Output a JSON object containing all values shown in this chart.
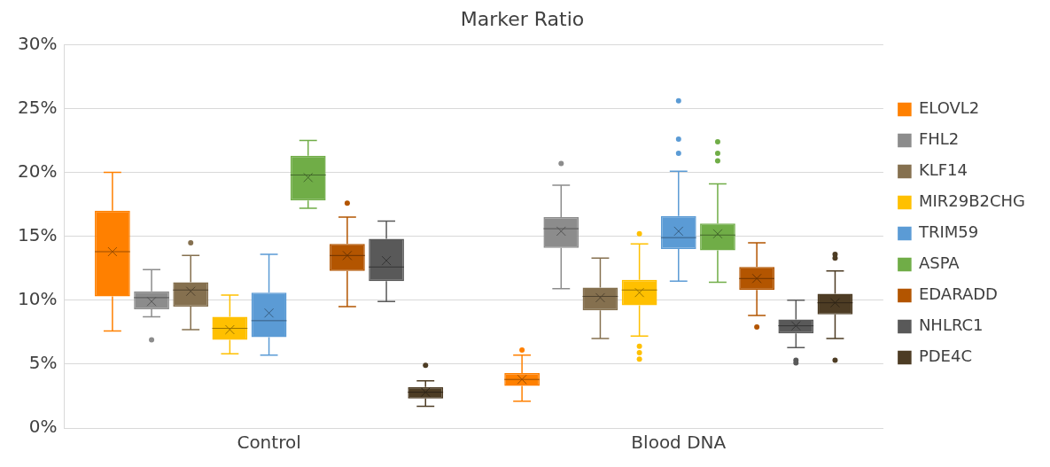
{
  "chart_data": {
    "type": "box",
    "title": "Marker Ratio",
    "categories": [
      "Control",
      "Blood DNA"
    ],
    "ylim": [
      0,
      30
    ],
    "yticks": [
      {
        "value": 0,
        "label": "0%"
      },
      {
        "value": 5,
        "label": "5%"
      },
      {
        "value": 10,
        "label": "10%"
      },
      {
        "value": 15,
        "label": "15%"
      },
      {
        "value": 20,
        "label": "20%"
      },
      {
        "value": 25,
        "label": "25%"
      },
      {
        "value": 30,
        "label": "30%"
      }
    ],
    "grid": "y",
    "legend": "right",
    "marker": "circle",
    "series": [
      {
        "name": "ELOVL2",
        "color": "#ff8000",
        "boxes": [
          {
            "low": 7.6,
            "q1": 10.3,
            "median": 13.8,
            "q3": 17.0,
            "high": 20.0,
            "mean": 13.8
          },
          {
            "low": 2.1,
            "q1": 3.3,
            "median": 3.8,
            "q3": 4.3,
            "high": 5.7,
            "mean": 3.8,
            "outliers": [
              6.1
            ]
          }
        ]
      },
      {
        "name": "FHL2",
        "color": "#8c8c8c",
        "boxes": [
          {
            "low": 8.7,
            "q1": 9.3,
            "median": 10.2,
            "q3": 10.7,
            "high": 12.4,
            "mean": 9.9,
            "outliers": [
              6.9
            ]
          },
          {
            "low": 10.9,
            "q1": 14.1,
            "median": 15.6,
            "q3": 16.5,
            "high": 19.0,
            "mean": 15.4,
            "outliers": [
              20.7
            ]
          }
        ]
      },
      {
        "name": "KLF14",
        "color": "#85704f",
        "boxes": [
          {
            "low": 7.7,
            "q1": 9.5,
            "median": 10.8,
            "q3": 11.4,
            "high": 13.5,
            "mean": 10.7,
            "outliers": [
              14.5
            ]
          },
          {
            "low": 7.0,
            "q1": 9.2,
            "median": 10.3,
            "q3": 11.0,
            "high": 13.3,
            "mean": 10.2
          }
        ]
      },
      {
        "name": "MIR29B2CHG",
        "color": "#ffc000",
        "boxes": [
          {
            "low": 5.8,
            "q1": 6.9,
            "median": 7.8,
            "q3": 8.7,
            "high": 10.4,
            "mean": 7.7
          },
          {
            "low": 7.2,
            "q1": 9.6,
            "median": 10.8,
            "q3": 11.6,
            "high": 14.4,
            "mean": 10.6,
            "outliers": [
              15.2,
              6.4,
              5.9,
              5.4
            ]
          }
        ]
      },
      {
        "name": "TRIM59",
        "color": "#5b9bd5",
        "boxes": [
          {
            "low": 5.7,
            "q1": 7.1,
            "median": 8.4,
            "q3": 10.6,
            "high": 13.6,
            "mean": 9.0
          },
          {
            "low": 11.5,
            "q1": 14.0,
            "median": 14.9,
            "q3": 16.6,
            "high": 20.1,
            "mean": 15.4,
            "outliers": [
              25.6,
              22.6,
              21.5
            ]
          }
        ]
      },
      {
        "name": "ASPA",
        "color": "#70ad47",
        "boxes": [
          {
            "low": 17.2,
            "q1": 17.8,
            "median": 19.8,
            "q3": 21.3,
            "high": 22.5,
            "mean": 19.6
          },
          {
            "low": 11.4,
            "q1": 13.9,
            "median": 15.1,
            "q3": 16.0,
            "high": 19.1,
            "mean": 15.2,
            "outliers": [
              22.4,
              21.5,
              20.9
            ]
          }
        ]
      },
      {
        "name": "EDARADD",
        "color": "#b35500",
        "boxes": [
          {
            "low": 9.5,
            "q1": 12.3,
            "median": 13.5,
            "q3": 14.4,
            "high": 16.5,
            "mean": 13.5,
            "outliers": [
              17.6
            ]
          },
          {
            "low": 8.8,
            "q1": 10.8,
            "median": 11.7,
            "q3": 12.6,
            "high": 14.5,
            "mean": 11.7,
            "outliers": [
              7.9
            ]
          }
        ]
      },
      {
        "name": "NHLRC1",
        "color": "#595959",
        "boxes": [
          {
            "low": 9.9,
            "q1": 11.5,
            "median": 12.6,
            "q3": 14.8,
            "high": 16.2,
            "mean": 13.1
          },
          {
            "low": 6.3,
            "q1": 7.4,
            "median": 8.0,
            "q3": 8.5,
            "high": 10.0,
            "mean": 8.0,
            "outliers": [
              5.3,
              5.1
            ]
          }
        ]
      },
      {
        "name": "PDE4C",
        "color": "#4d3c24",
        "boxes": [
          {
            "low": 1.7,
            "q1": 2.3,
            "median": 2.8,
            "q3": 3.2,
            "high": 3.7,
            "mean": 2.8,
            "outliers": [
              4.9
            ]
          },
          {
            "low": 7.0,
            "q1": 8.9,
            "median": 9.8,
            "q3": 10.5,
            "high": 12.3,
            "mean": 9.8,
            "outliers": [
              13.6,
              13.3,
              5.3
            ]
          }
        ]
      }
    ]
  }
}
